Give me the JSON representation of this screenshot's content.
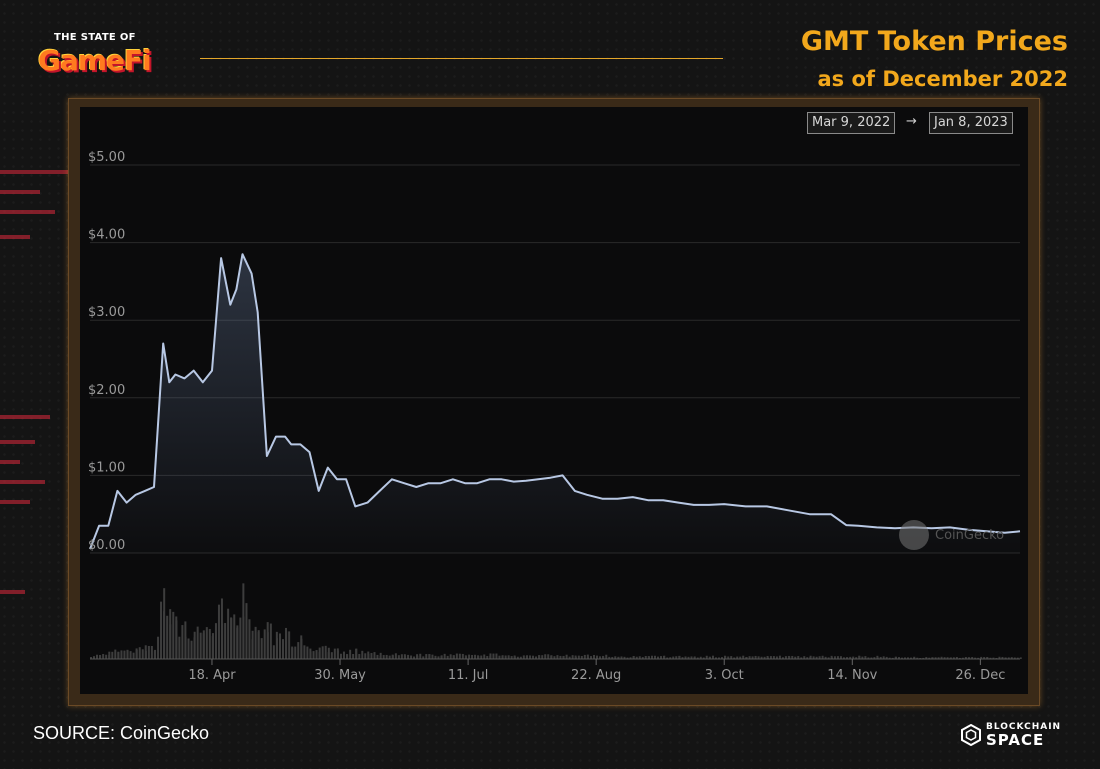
{
  "header": {
    "logo_small": "THE STATE OF",
    "logo_big": "GameFi",
    "title": "GMT Token Prices",
    "subtitle": "as of December 2022"
  },
  "date_range": {
    "from": "Mar 9, 2022",
    "arrow": "→",
    "to": "Jan 8, 2023"
  },
  "watermark": "CoinGecko",
  "footer": {
    "source": "SOURCE: CoinGecko",
    "brand_small": "BLOCKCHAIN",
    "brand_big": "SPACE"
  },
  "colors": {
    "accent": "#f2a81c",
    "line": "#b8c8e4",
    "volume": "#3a3a3a"
  },
  "chart_data": {
    "type": "line",
    "y_ticks": [
      "$0.00",
      "$1.00",
      "$2.00",
      "$3.00",
      "$4.00",
      "$5.00"
    ],
    "ylim": [
      0,
      5
    ],
    "x_ticks": [
      "18. Apr",
      "30. May",
      "11. Jul",
      "22. Aug",
      "3. Oct",
      "14. Nov",
      "26. Dec"
    ],
    "x_tick_dates": [
      "2022-04-18",
      "2022-05-30",
      "2022-07-11",
      "2022-08-22",
      "2022-10-03",
      "2022-11-14",
      "2022-12-26"
    ],
    "xlim": [
      "2022-03-09",
      "2023-01-08"
    ],
    "grid": true,
    "series": [
      {
        "x": [
          "2022-03-09",
          "2022-03-12",
          "2022-03-15",
          "2022-03-18",
          "2022-03-21",
          "2022-03-24",
          "2022-03-27",
          "2022-03-30",
          "2022-04-02",
          "2022-04-04",
          "2022-04-06",
          "2022-04-09",
          "2022-04-12",
          "2022-04-15",
          "2022-04-18",
          "2022-04-21",
          "2022-04-24",
          "2022-04-26",
          "2022-04-28",
          "2022-05-01",
          "2022-05-03",
          "2022-05-06",
          "2022-05-09",
          "2022-05-12",
          "2022-05-14",
          "2022-05-17",
          "2022-05-20",
          "2022-05-23",
          "2022-05-26",
          "2022-05-29",
          "2022-06-01",
          "2022-06-04",
          "2022-06-08",
          "2022-06-12",
          "2022-06-16",
          "2022-06-20",
          "2022-06-24",
          "2022-06-28",
          "2022-07-02",
          "2022-07-06",
          "2022-07-10",
          "2022-07-14",
          "2022-07-18",
          "2022-07-22",
          "2022-07-26",
          "2022-07-30",
          "2022-08-03",
          "2022-08-07",
          "2022-08-11",
          "2022-08-15",
          "2022-08-19",
          "2022-08-24",
          "2022-08-29",
          "2022-09-03",
          "2022-09-08",
          "2022-09-13",
          "2022-09-18",
          "2022-09-23",
          "2022-09-28",
          "2022-10-03",
          "2022-10-10",
          "2022-10-17",
          "2022-10-24",
          "2022-10-31",
          "2022-11-07",
          "2022-11-12",
          "2022-11-16",
          "2022-11-22",
          "2022-11-28",
          "2022-12-04",
          "2022-12-10",
          "2022-12-16",
          "2022-12-22",
          "2022-12-28",
          "2023-01-03",
          "2023-01-08"
        ],
        "y": [
          0.05,
          0.35,
          0.35,
          0.8,
          0.65,
          0.75,
          0.8,
          0.85,
          2.7,
          2.2,
          2.3,
          2.25,
          2.35,
          2.2,
          2.35,
          3.8,
          3.2,
          3.4,
          3.85,
          3.6,
          3.1,
          1.25,
          1.5,
          1.5,
          1.4,
          1.4,
          1.3,
          0.8,
          1.1,
          0.95,
          0.95,
          0.6,
          0.65,
          0.8,
          0.95,
          0.9,
          0.85,
          0.9,
          0.9,
          0.95,
          0.9,
          0.9,
          0.95,
          0.95,
          0.92,
          0.93,
          0.95,
          0.97,
          1.0,
          0.8,
          0.75,
          0.7,
          0.7,
          0.72,
          0.68,
          0.68,
          0.65,
          0.62,
          0.62,
          0.63,
          0.6,
          0.6,
          0.55,
          0.5,
          0.5,
          0.36,
          0.35,
          0.33,
          0.32,
          0.33,
          0.32,
          0.33,
          0.3,
          0.28,
          0.26,
          0.28
        ]
      }
    ],
    "volume": [
      0.02,
      0.05,
      0.08,
      0.12,
      0.1,
      0.1,
      0.13,
      0.15,
      0.72,
      0.45,
      0.4,
      0.35,
      0.3,
      0.3,
      0.32,
      0.6,
      0.4,
      0.45,
      0.7,
      0.4,
      0.3,
      0.35,
      0.25,
      0.3,
      0.2,
      0.22,
      0.15,
      0.12,
      0.12,
      0.1,
      0.08,
      0.1,
      0.08,
      0.06,
      0.06,
      0.05,
      0.05,
      0.05,
      0.05,
      0.05,
      0.05,
      0.05,
      0.05,
      0.05,
      0.04,
      0.04,
      0.04,
      0.05,
      0.05,
      0.04,
      0.04,
      0.04,
      0.03,
      0.03,
      0.03,
      0.03,
      0.03,
      0.03,
      0.03,
      0.03,
      0.03,
      0.03,
      0.03,
      0.03,
      0.03,
      0.03,
      0.03,
      0.03,
      0.02,
      0.02,
      0.02,
      0.02,
      0.02,
      0.02,
      0.02,
      0.02
    ]
  }
}
